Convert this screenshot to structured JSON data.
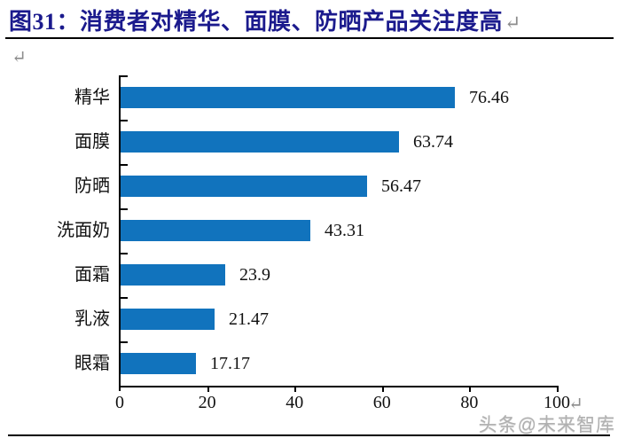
{
  "header": {
    "title": "图31：消费者对精华、面膜、防晒产品关注度高",
    "return_mark": "↵"
  },
  "body": {
    "paragraph_mark": "↵"
  },
  "chart_data": {
    "type": "bar",
    "orientation": "horizontal",
    "title": "消费者对精华、面膜、防晒产品关注度高",
    "categories": [
      "精华",
      "面膜",
      "防晒",
      "洗面奶",
      "面霜",
      "乳液",
      "眼霜"
    ],
    "values": [
      76.46,
      63.74,
      56.47,
      43.31,
      23.9,
      21.47,
      17.17
    ],
    "value_labels": [
      "76.46",
      "63.74",
      "56.47",
      "43.31",
      "23.9",
      "21.47",
      "17.17"
    ],
    "x_ticks": [
      0,
      20,
      40,
      60,
      80,
      100
    ],
    "xlim": [
      0,
      100
    ],
    "xlabel": "",
    "ylabel": "",
    "grid": false,
    "legend": false,
    "data_labels": true,
    "bar_color": "#1173BD",
    "axis_return_mark": "↵"
  },
  "footer": {
    "watermark": "头条@未来智库"
  },
  "colors": {
    "title": "#1B1A8D",
    "bar": "#1173BD",
    "axis": "#000000",
    "watermark": "#B0B0B0",
    "mark_gray": "#8C8C8C"
  }
}
